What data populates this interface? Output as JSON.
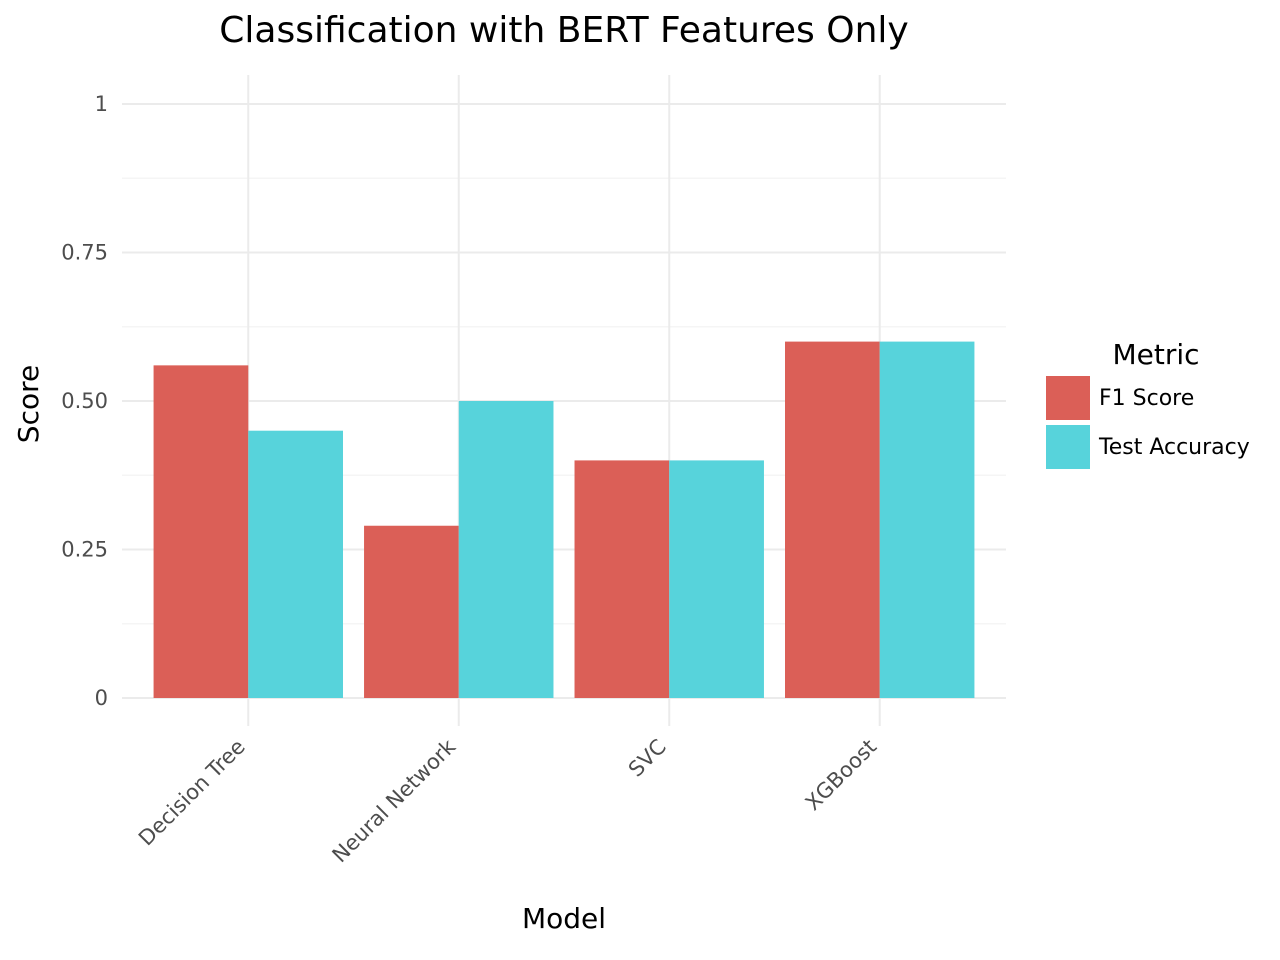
{
  "chart_data": {
    "type": "bar",
    "title": "Classification with BERT Features Only",
    "xlabel": "Model",
    "ylabel": "Score",
    "categories": [
      "Decision Tree",
      "Neural Network",
      "SVC",
      "XGBoost"
    ],
    "series": [
      {
        "name": "F1 Score",
        "values": [
          0.56,
          0.29,
          0.4,
          0.6
        ],
        "color": "#db5f57"
      },
      {
        "name": "Test Accuracy",
        "values": [
          0.45,
          0.5,
          0.4,
          0.6
        ],
        "color": "#57d3db"
      }
    ],
    "ylim": [
      0,
      1
    ],
    "yticks": [
      0,
      0.25,
      0.5,
      0.75,
      1
    ],
    "ytick_labels": [
      "0",
      "0.25",
      "0.50",
      "0.75",
      "1"
    ],
    "grid": true,
    "legend": {
      "title": "Metric",
      "placement": "right"
    }
  }
}
